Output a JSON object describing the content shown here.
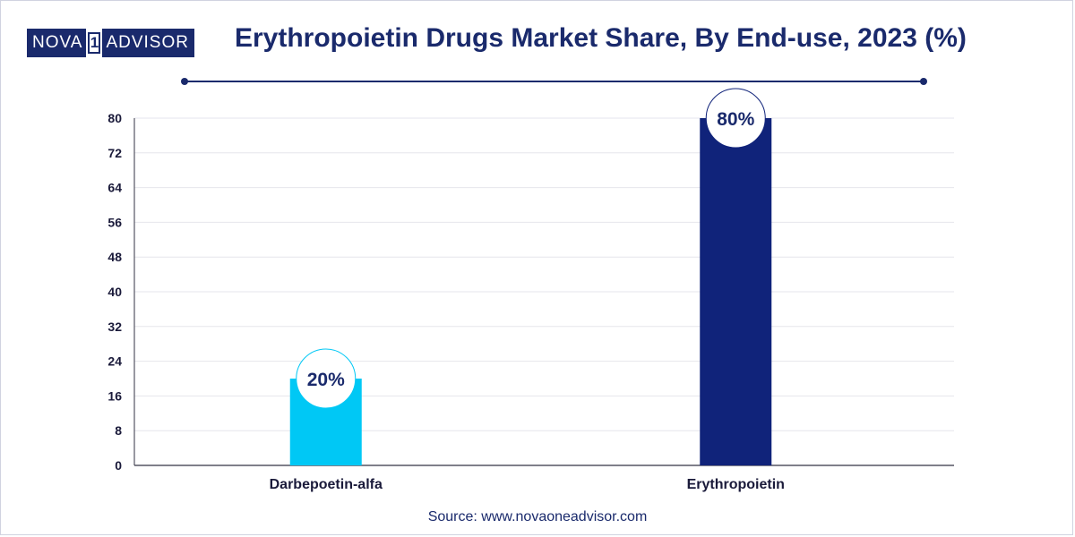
{
  "logo": {
    "part1": "NOVA",
    "part2": "1",
    "part3": "ADVISOR"
  },
  "source": "Source: www.novaoneadvisor.com",
  "chart_data": {
    "type": "bar",
    "title": "Erythropoietin Drugs Market Share, By End-use, 2023 (%)",
    "xlabel": "",
    "ylabel": "",
    "categories": [
      "Darbepoetin-alfa",
      "Erythropoietin"
    ],
    "values": [
      20,
      80
    ],
    "data_labels": [
      "20%",
      "80%"
    ],
    "bar_colors": [
      "#00c8f5",
      "#10237a"
    ],
    "ylim": [
      0,
      80
    ],
    "yticks": [
      0,
      8,
      16,
      24,
      32,
      40,
      48,
      56,
      64,
      72,
      80
    ],
    "grid": true,
    "legend": "none"
  }
}
